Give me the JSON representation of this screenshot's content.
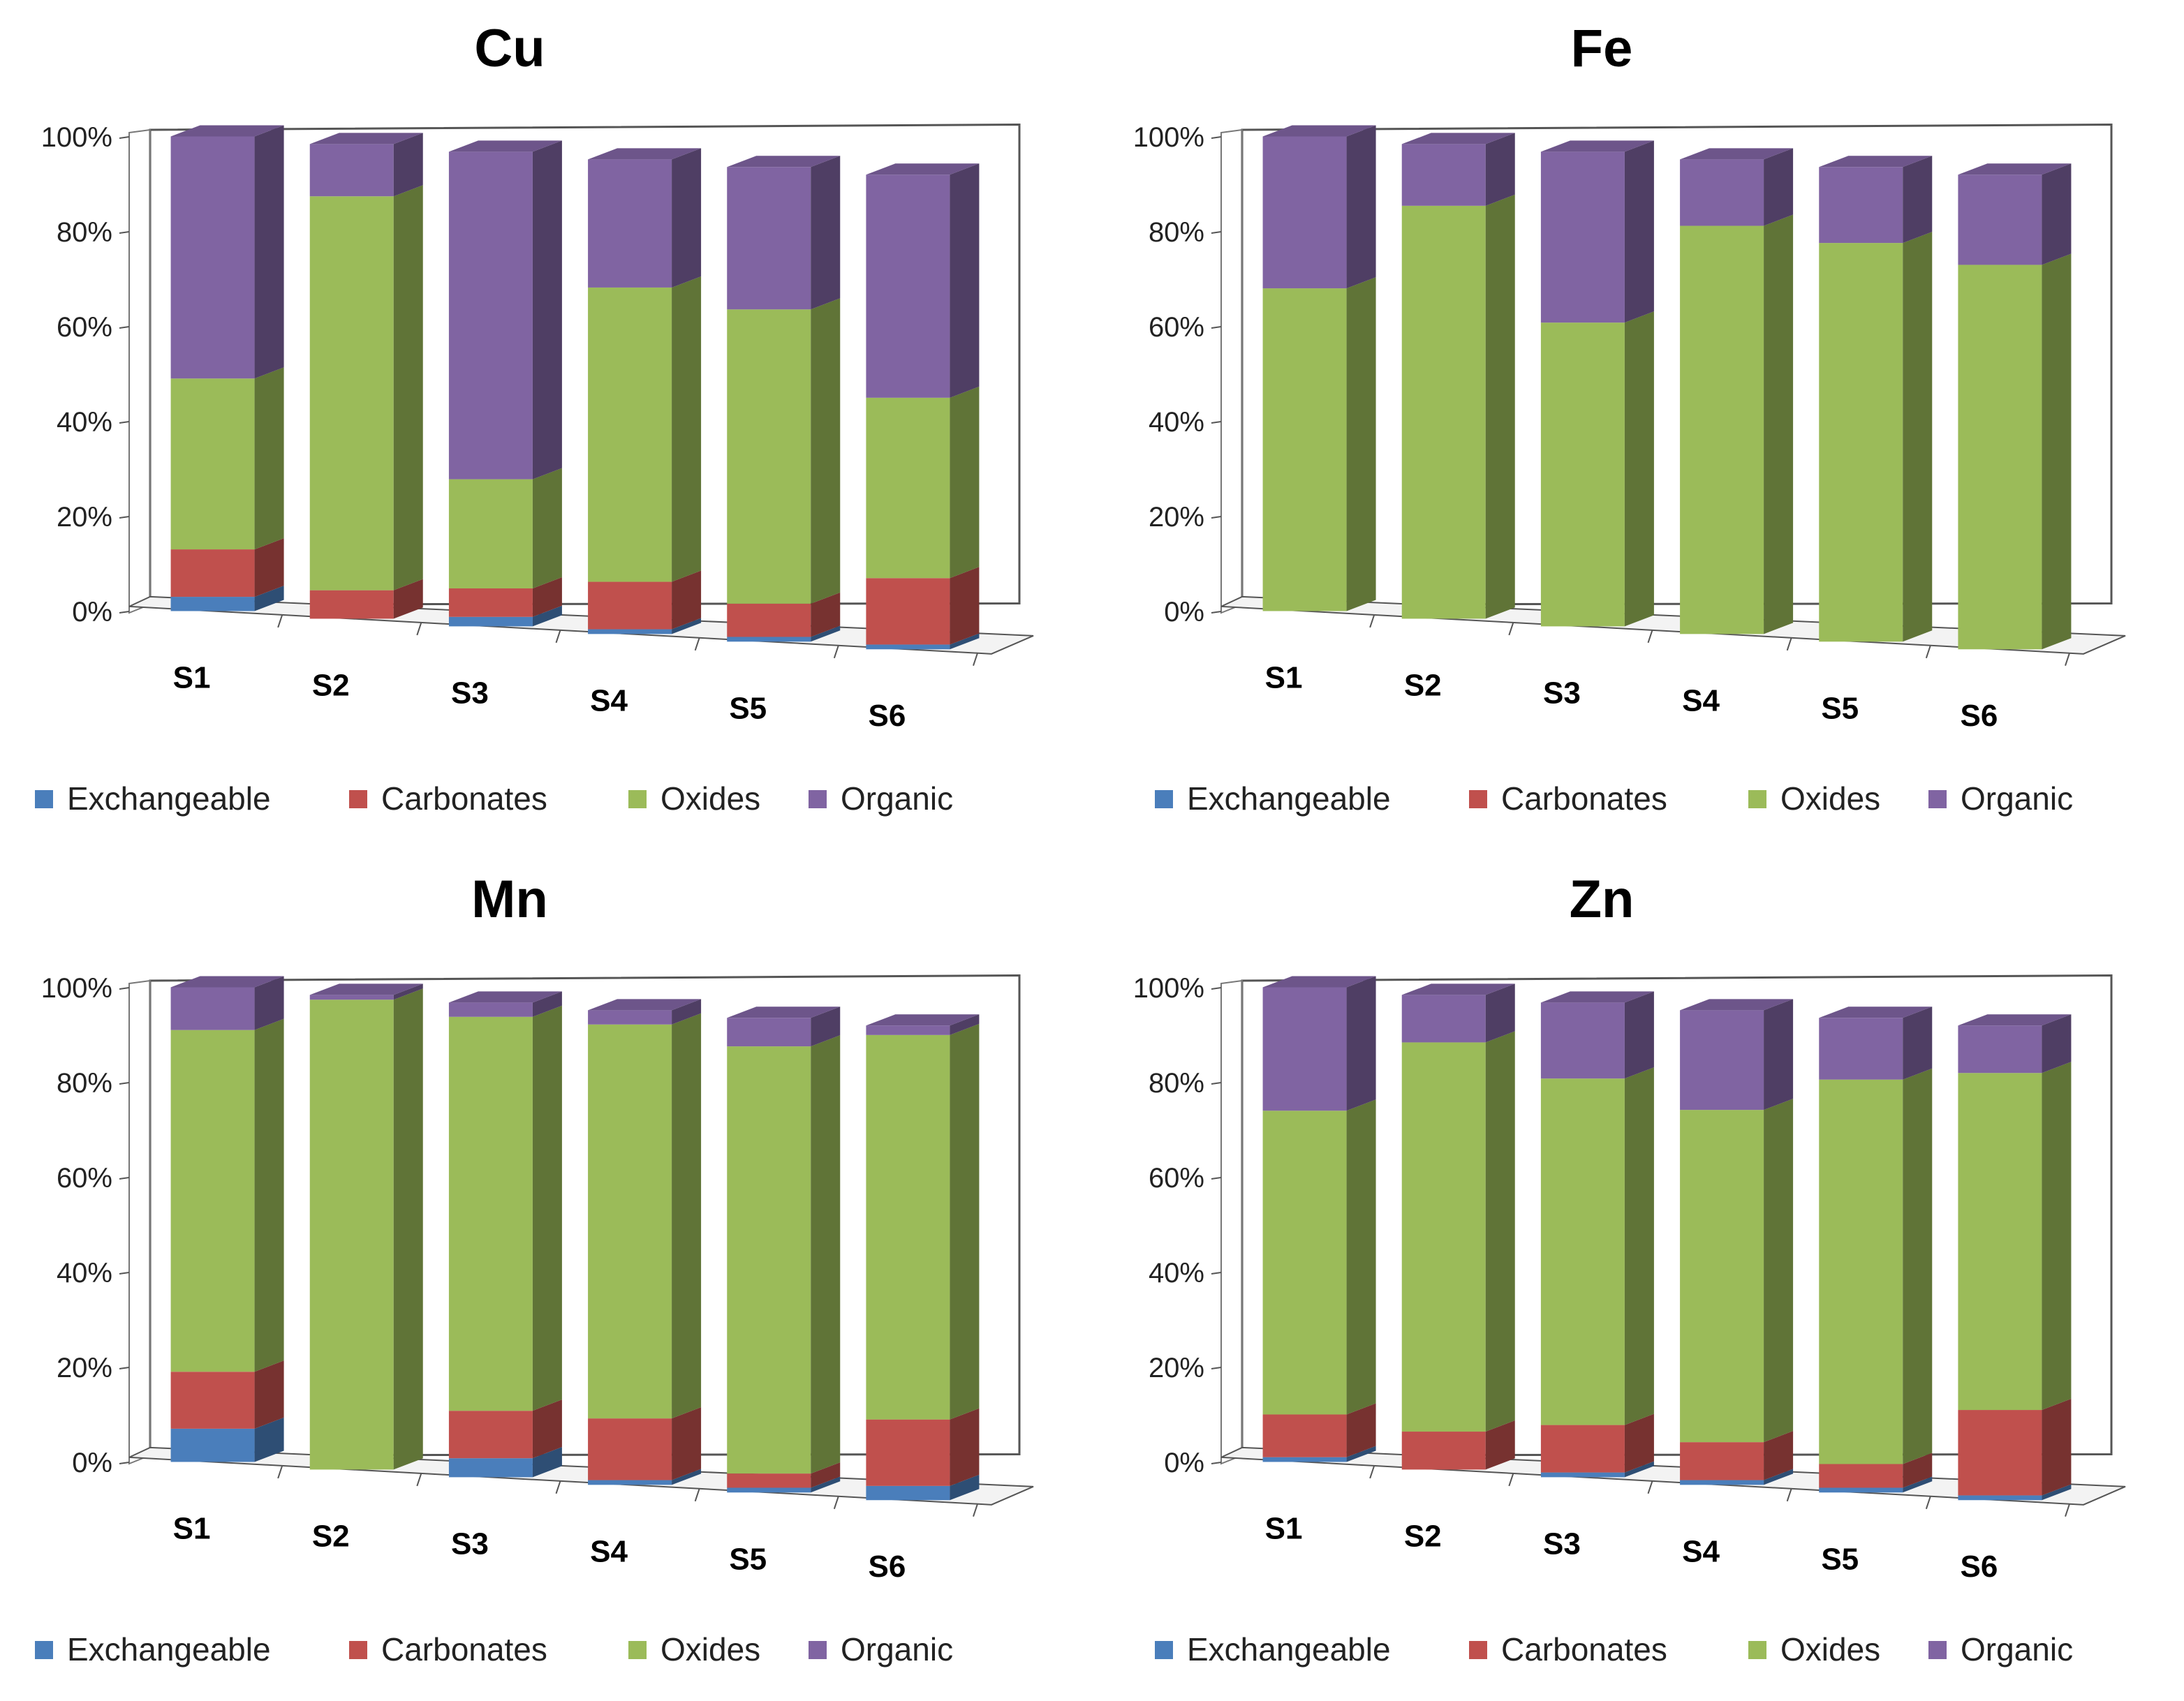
{
  "legend_colors": {
    "Exchangeable": "#4a7ebb",
    "Carbonates": "#c0504d",
    "Oxides": "#9bbb59",
    "Organic": "#8064a2"
  },
  "chart_data": [
    {
      "type": "bar",
      "stacked": true,
      "percent": true,
      "three_d": true,
      "title": "Cu",
      "categories": [
        "S1",
        "S2",
        "S3",
        "S4",
        "S5",
        "S6"
      ],
      "yticks": [
        "0%",
        "20%",
        "40%",
        "60%",
        "80%",
        "100%"
      ],
      "ylim": [
        0,
        100
      ],
      "legend_position": "bottom",
      "series": [
        {
          "name": "Exchangeable",
          "values": [
            3,
            0,
            2,
            1,
            1,
            1
          ]
        },
        {
          "name": "Carbonates",
          "values": [
            10,
            6,
            6,
            10,
            7,
            14
          ]
        },
        {
          "name": "Oxides",
          "values": [
            36,
            83,
            23,
            62,
            62,
            38
          ]
        },
        {
          "name": "Organic",
          "values": [
            51,
            11,
            69,
            27,
            30,
            47
          ]
        }
      ]
    },
    {
      "type": "bar",
      "stacked": true,
      "percent": true,
      "three_d": true,
      "title": "Fe",
      "categories": [
        "S1",
        "S2",
        "S3",
        "S4",
        "S5",
        "S6"
      ],
      "yticks": [
        "0%",
        "20%",
        "40%",
        "60%",
        "80%",
        "100%"
      ],
      "ylim": [
        0,
        100
      ],
      "legend_position": "bottom",
      "series": [
        {
          "name": "Exchangeable",
          "values": [
            0,
            0,
            0,
            0,
            0,
            0
          ]
        },
        {
          "name": "Carbonates",
          "values": [
            0,
            0,
            0,
            0,
            0,
            0
          ]
        },
        {
          "name": "Oxides",
          "values": [
            68,
            87,
            64,
            86,
            84,
            81
          ]
        },
        {
          "name": "Organic",
          "values": [
            32,
            13,
            36,
            14,
            16,
            19
          ]
        }
      ]
    },
    {
      "type": "bar",
      "stacked": true,
      "percent": true,
      "three_d": true,
      "title": "Mn",
      "categories": [
        "S1",
        "S2",
        "S3",
        "S4",
        "S5",
        "S6"
      ],
      "yticks": [
        "0%",
        "20%",
        "40%",
        "60%",
        "80%",
        "100%"
      ],
      "ylim": [
        0,
        100
      ],
      "legend_position": "bottom",
      "series": [
        {
          "name": "Exchangeable",
          "values": [
            7,
            0,
            4,
            1,
            1,
            3
          ]
        },
        {
          "name": "Carbonates",
          "values": [
            12,
            0,
            10,
            13,
            3,
            14
          ]
        },
        {
          "name": "Oxides",
          "values": [
            72,
            99,
            83,
            83,
            90,
            81
          ]
        },
        {
          "name": "Organic",
          "values": [
            9,
            1,
            3,
            3,
            6,
            2
          ]
        }
      ]
    },
    {
      "type": "bar",
      "stacked": true,
      "percent": true,
      "three_d": true,
      "title": "Zn",
      "categories": [
        "S1",
        "S2",
        "S3",
        "S4",
        "S5",
        "S6"
      ],
      "yticks": [
        "0%",
        "20%",
        "40%",
        "60%",
        "80%",
        "100%"
      ],
      "ylim": [
        0,
        100
      ],
      "legend_position": "bottom",
      "series": [
        {
          "name": "Exchangeable",
          "values": [
            1,
            0,
            1,
            1,
            1,
            1
          ]
        },
        {
          "name": "Carbonates",
          "values": [
            9,
            8,
            10,
            8,
            5,
            18
          ]
        },
        {
          "name": "Oxides",
          "values": [
            64,
            82,
            73,
            70,
            81,
            71
          ]
        },
        {
          "name": "Organic",
          "values": [
            26,
            10,
            16,
            21,
            13,
            10
          ]
        }
      ]
    }
  ]
}
